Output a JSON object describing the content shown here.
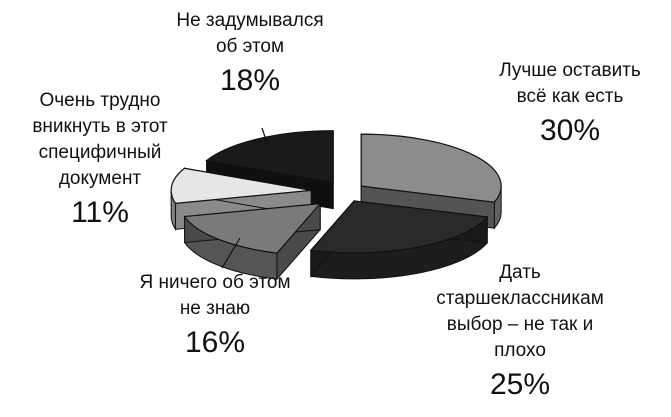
{
  "chart_data": {
    "type": "pie",
    "title": "",
    "style": "3d-exploded",
    "legend": "none",
    "slices": [
      {
        "label": "Лучше оставить всё как есть",
        "lines": [
          "Лучше оставить",
          "всё как есть"
        ],
        "value": 30,
        "value_label": "30%",
        "color": "#8c8c8c"
      },
      {
        "label": "Дать старшеклассникам выбор – не так и плохо",
        "lines": [
          "Дать",
          "старшеклассникам",
          "выбор – не так и",
          "плохо"
        ],
        "value": 25,
        "value_label": "25%",
        "color": "#2a2a2a"
      },
      {
        "label": "Я ничего об этом не знаю",
        "lines": [
          "Я ничего об этом",
          "не знаю"
        ],
        "value": 16,
        "value_label": "16%",
        "color": "#7a7a7a"
      },
      {
        "label": "Очень трудно вникнуть в этот специфичный документ",
        "lines": [
          "Очень трудно",
          "вникнуть в этот",
          "специфичный",
          "документ"
        ],
        "value": 11,
        "value_label": "11%",
        "color": "#e6e6e6"
      },
      {
        "label": "Не задумывался об этом",
        "lines": [
          "Не задумывался",
          "об этом"
        ],
        "value": 18,
        "value_label": "18%",
        "color": "#1a1a1a"
      }
    ]
  }
}
